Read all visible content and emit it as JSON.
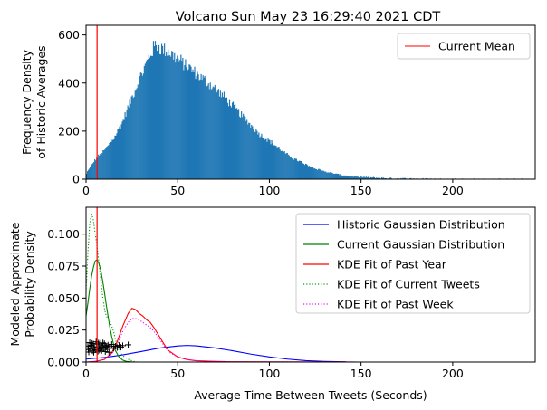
{
  "title": "Volcano Sun May 23 16:29:40 2021 CDT",
  "colors": {
    "hist": "#1f77b4",
    "mean_line": "#ff0000",
    "historic_gauss": "#0000ff",
    "current_gauss": "#008000",
    "kde_year": "#ff0000",
    "kde_current": "#00a000",
    "kde_week": "#ff00ff",
    "markers": "#000000"
  },
  "chart_data": [
    {
      "type": "bar",
      "subtype": "histogram",
      "ylabel_line1": "Frequency Density",
      "ylabel_line2": "of Historic Averages",
      "xlim": [
        0,
        245
      ],
      "ylim": [
        0,
        640
      ],
      "x_ticks": [
        0,
        50,
        100,
        150,
        200
      ],
      "y_ticks": [
        0,
        200,
        400,
        600
      ],
      "legend": {
        "position": "top-right",
        "entries": [
          "Current Mean"
        ]
      },
      "current_mean": 6.0,
      "bin_width": 0.5,
      "histogram_profile": {
        "x": [
          0,
          3,
          6,
          10,
          15,
          20,
          25,
          30,
          35,
          38,
          42,
          45,
          50,
          55,
          60,
          65,
          70,
          75,
          80,
          85,
          90,
          95,
          100,
          105,
          110,
          115,
          120,
          125,
          130,
          135,
          140,
          145,
          150,
          160,
          170,
          180,
          190,
          200,
          215,
          230,
          245
        ],
        "y": [
          20,
          60,
          90,
          120,
          170,
          240,
          340,
          430,
          520,
          560,
          540,
          530,
          500,
          470,
          440,
          410,
          380,
          345,
          305,
          265,
          225,
          185,
          160,
          130,
          100,
          80,
          60,
          45,
          33,
          24,
          17,
          12,
          9,
          5,
          3,
          2,
          1,
          0.6,
          0.3,
          0.1,
          0
        ]
      }
    },
    {
      "type": "line",
      "ylabel_line1": "Modeled Approximate",
      "ylabel_line2": "Probability Density",
      "xlabel": "Average Time Between Tweets (Seconds)",
      "xlim": [
        0,
        245
      ],
      "ylim": [
        0,
        0.121
      ],
      "x_ticks": [
        0,
        50,
        100,
        150,
        200
      ],
      "y_ticks": [
        "0.000",
        "0.025",
        "0.050",
        "0.075",
        "0.100"
      ],
      "y_tick_values": [
        0,
        0.025,
        0.05,
        0.075,
        0.1
      ],
      "legend": {
        "position": "top-right"
      },
      "current_mean": 6.0,
      "series": [
        {
          "name": "Historic Gaussian Distribution",
          "style": "solid",
          "color_key": "historic_gauss",
          "x": [
            0,
            10,
            20,
            30,
            40,
            50,
            55,
            60,
            70,
            80,
            90,
            100,
            110,
            120,
            130,
            140,
            142
          ],
          "y": [
            0.0023,
            0.0036,
            0.0056,
            0.0082,
            0.0109,
            0.0126,
            0.013,
            0.0127,
            0.0111,
            0.0088,
            0.0062,
            0.004,
            0.0023,
            0.0011,
            0.0005,
            0.0002,
            0.0001
          ]
        },
        {
          "name": "Current Gaussian Distribution",
          "style": "solid",
          "color_key": "current_gauss",
          "x": [
            0,
            1,
            2,
            3,
            4,
            5,
            6,
            7,
            8,
            9,
            10,
            11,
            12,
            13,
            14,
            15,
            16,
            18,
            20,
            22,
            24,
            26
          ],
          "y": [
            0.036,
            0.046,
            0.057,
            0.067,
            0.074,
            0.079,
            0.08,
            0.077,
            0.072,
            0.064,
            0.055,
            0.045,
            0.036,
            0.027,
            0.02,
            0.014,
            0.009,
            0.004,
            0.0015,
            0.0005,
            0.0002,
            0
          ]
        },
        {
          "name": "KDE Fit of Past Year",
          "style": "solid",
          "color_key": "kde_year",
          "x": [
            0,
            5,
            10,
            14,
            17,
            20,
            23,
            25,
            27,
            29,
            31,
            33,
            35,
            37,
            40,
            43,
            45,
            50,
            55,
            60,
            70,
            80,
            100,
            150,
            230
          ],
          "y": [
            0,
            0.0005,
            0.002,
            0.007,
            0.016,
            0.028,
            0.038,
            0.042,
            0.041,
            0.038,
            0.036,
            0.033,
            0.031,
            0.027,
            0.02,
            0.013,
            0.009,
            0.004,
            0.002,
            0.001,
            0.0005,
            0.0002,
            0.0001,
            0,
            0
          ]
        },
        {
          "name": "KDE Fit of Current Tweets",
          "style": "dotted",
          "color_key": "kde_current",
          "x": [
            0,
            1,
            2,
            3,
            4,
            5,
            6,
            7,
            8,
            9,
            10,
            11,
            12,
            13,
            14,
            15,
            16,
            17,
            18,
            20,
            22,
            24,
            26,
            28
          ],
          "y": [
            0.055,
            0.085,
            0.108,
            0.116,
            0.111,
            0.1,
            0.09,
            0.078,
            0.065,
            0.052,
            0.042,
            0.036,
            0.034,
            0.032,
            0.028,
            0.024,
            0.018,
            0.013,
            0.009,
            0.005,
            0.003,
            0.0015,
            0.0005,
            0
          ]
        },
        {
          "name": "KDE Fit of Past Week",
          "style": "dotted",
          "color_key": "kde_week",
          "x": [
            0,
            5,
            10,
            14,
            17,
            20,
            23,
            25,
            27,
            29,
            31,
            33,
            35,
            37,
            40,
            43,
            45,
            50,
            55,
            60,
            80,
            150,
            230
          ],
          "y": [
            0,
            0.0005,
            0.002,
            0.006,
            0.014,
            0.024,
            0.031,
            0.034,
            0.034,
            0.033,
            0.031,
            0.029,
            0.027,
            0.024,
            0.018,
            0.012,
            0.008,
            0.004,
            0.002,
            0.001,
            0.0002,
            0,
            0
          ]
        }
      ],
      "markers": {
        "symbol": "+",
        "points": [
          [
            1.0,
            0.0125
          ],
          [
            1.5,
            0.0078
          ],
          [
            2.0,
            0.0152
          ],
          [
            2.5,
            0.0104
          ],
          [
            3.0,
            0.0131
          ],
          [
            3.5,
            0.0087
          ],
          [
            4.0,
            0.0141
          ],
          [
            4.5,
            0.0112
          ],
          [
            5.0,
            0.0095
          ],
          [
            5.5,
            0.0158
          ],
          [
            6.0,
            0.012
          ],
          [
            6.5,
            0.0084
          ],
          [
            7.0,
            0.0136
          ],
          [
            7.5,
            0.0103
          ],
          [
            8.0,
            0.0147
          ],
          [
            8.5,
            0.009
          ],
          [
            9.0,
            0.0127
          ],
          [
            9.5,
            0.0109
          ],
          [
            10.0,
            0.0143
          ],
          [
            10.5,
            0.0081
          ],
          [
            11.0,
            0.0118
          ],
          [
            11.5,
            0.0099
          ],
          [
            12.0,
            0.0133
          ],
          [
            12.5,
            0.0076
          ],
          [
            13.0,
            0.0122
          ],
          [
            14.0,
            0.0138
          ],
          [
            15.0,
            0.0107
          ],
          [
            16.0,
            0.0124
          ],
          [
            17.0,
            0.0113
          ],
          [
            18.0,
            0.013
          ],
          [
            19.0,
            0.0116
          ],
          [
            20.0,
            0.0128
          ],
          [
            23.0,
            0.0135
          ],
          [
            1.2,
            0.0097
          ],
          [
            2.8,
            0.0121
          ],
          [
            4.2,
            0.0076
          ],
          [
            5.8,
            0.0111
          ],
          [
            7.3,
            0.0093
          ],
          [
            9.2,
            0.015
          ],
          [
            3.3,
            0.0146
          ],
          [
            6.8,
            0.0149
          ],
          [
            8.8,
            0.0115
          ],
          [
            10.8,
            0.0126
          ]
        ]
      }
    }
  ]
}
